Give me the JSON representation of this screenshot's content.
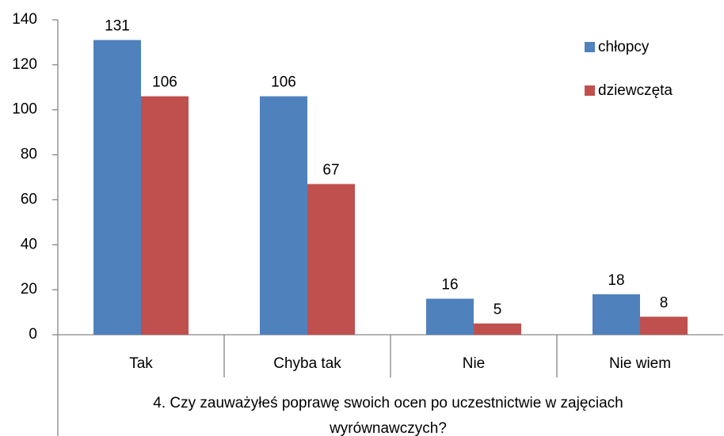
{
  "chart_data": {
    "type": "bar",
    "x_label": "4. Czy zauważyłeś poprawę swoich ocen po uczestnictwie w zajęciach wyrównawczych?",
    "categories": [
      "Tak",
      "Chyba tak",
      "Nie",
      "Nie wiem"
    ],
    "series": [
      {
        "name": "chłopcy",
        "color": "#4f81bd",
        "values": [
          131,
          106,
          16,
          18
        ]
      },
      {
        "name": "dziewczęta",
        "color": "#c0504d",
        "values": [
          106,
          67,
          5,
          8
        ]
      }
    ],
    "ylim": [
      0,
      140
    ],
    "yticks": [
      0,
      20,
      40,
      60,
      80,
      100,
      120,
      140
    ],
    "grid": false,
    "legend": "upper right"
  }
}
